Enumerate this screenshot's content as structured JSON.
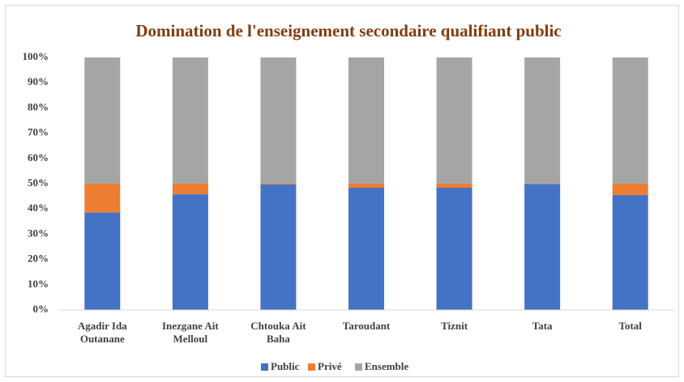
{
  "chart_data": {
    "type": "stacked_bar_percent",
    "title": "Domination de l'enseignement secondaire qualifiant public",
    "categories": [
      "Agadir Ida Outanane",
      "Inezgane Ait Melloul",
      "Chtouka Ait Baha",
      "Taroudant",
      "Tiznit",
      "Tata",
      "Total"
    ],
    "series": [
      {
        "name": "Public",
        "color": "#4472c4",
        "values": [
          38.6,
          45.8,
          49.7,
          48.4,
          48.4,
          49.9,
          45.5
        ]
      },
      {
        "name": "Privé",
        "color": "#ed7d31",
        "values": [
          11.4,
          4.2,
          0.3,
          1.6,
          1.6,
          0.1,
          4.5
        ]
      },
      {
        "name": "Ensemble",
        "color": "#a5a5a5",
        "values": [
          50,
          50,
          50,
          50,
          50,
          50,
          50
        ]
      }
    ],
    "ylim": [
      0,
      100
    ],
    "yticks": [
      {
        "value": 0,
        "label": "0%"
      },
      {
        "value": 10,
        "label": "10%"
      },
      {
        "value": 20,
        "label": "20%"
      },
      {
        "value": 30,
        "label": "30%"
      },
      {
        "value": 40,
        "label": "40%"
      },
      {
        "value": 50,
        "label": "50%"
      },
      {
        "value": 60,
        "label": "60%"
      },
      {
        "value": 70,
        "label": "70%"
      },
      {
        "value": 80,
        "label": "80%"
      },
      {
        "value": 90,
        "label": "90%"
      },
      {
        "value": 100,
        "label": "100%"
      }
    ],
    "grid": false,
    "legend": "bottom"
  }
}
